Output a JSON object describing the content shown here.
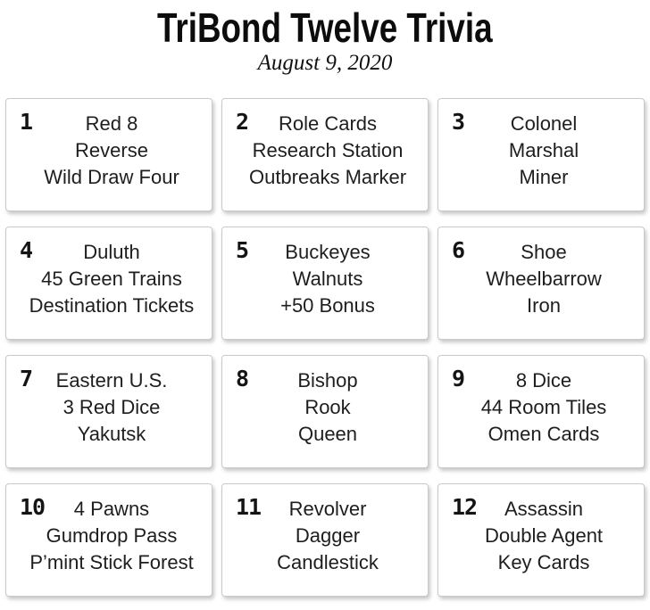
{
  "header": {
    "title": "TriBond Twelve Trivia",
    "date": "August 9, 2020"
  },
  "cards": [
    {
      "number": "1",
      "lines": [
        "Red 8",
        "Reverse",
        "Wild Draw Four"
      ]
    },
    {
      "number": "2",
      "lines": [
        "Role Cards",
        "Research Station",
        "Outbreaks Marker"
      ]
    },
    {
      "number": "3",
      "lines": [
        "Colonel",
        "Marshal",
        "Miner"
      ]
    },
    {
      "number": "4",
      "lines": [
        "Duluth",
        "45 Green Trains",
        "Destination Tickets"
      ]
    },
    {
      "number": "5",
      "lines": [
        "Buckeyes",
        "Walnuts",
        "+50 Bonus"
      ]
    },
    {
      "number": "6",
      "lines": [
        "Shoe",
        "Wheelbarrow",
        "Iron"
      ]
    },
    {
      "number": "7",
      "lines": [
        "Eastern U.S.",
        "3 Red Dice",
        "Yakutsk"
      ]
    },
    {
      "number": "8",
      "lines": [
        "Bishop",
        "Rook",
        "Queen"
      ]
    },
    {
      "number": "9",
      "lines": [
        "8 Dice",
        "44 Room Tiles",
        "Omen Cards"
      ]
    },
    {
      "number": "10",
      "lines": [
        "4 Pawns",
        "Gumdrop Pass",
        "P’mint Stick Forest"
      ]
    },
    {
      "number": "11",
      "lines": [
        "Revolver",
        "Dagger",
        "Candlestick"
      ]
    },
    {
      "number": "12",
      "lines": [
        "Assassin",
        "Double Agent",
        "Key Cards"
      ]
    }
  ],
  "colors": {
    "background": "#ffffff",
    "card_border": "#c9c9c9",
    "text": "#1e1e1e",
    "title_text": "#0c0c0c"
  }
}
